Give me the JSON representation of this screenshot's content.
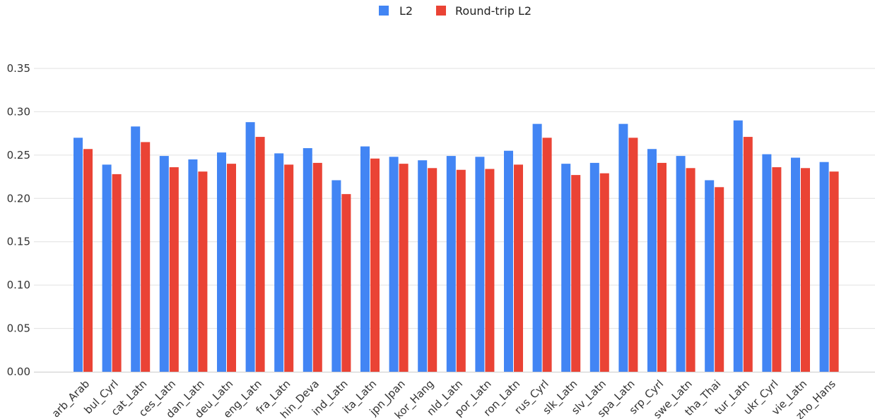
{
  "chart_data": {
    "type": "bar",
    "title": "",
    "xlabel": "",
    "ylabel": "",
    "ylim": [
      0,
      0.37
    ],
    "yticks": [
      "0.00",
      "0.05",
      "0.10",
      "0.15",
      "0.20",
      "0.25",
      "0.30",
      "0.35"
    ],
    "grid": true,
    "legend_position": "top-center",
    "categories": [
      "arb_Arab",
      "bul_Cyrl",
      "cat_Latn",
      "ces_Latn",
      "dan_Latn",
      "deu_Latn",
      "eng_Latn",
      "fra_Latn",
      "hin_Deva",
      "ind_Latn",
      "ita_Latn",
      "jpn_Jpan",
      "kor_Hang",
      "nld_Latn",
      "por_Latn",
      "ron_Latn",
      "rus_Cyrl",
      "slk_Latn",
      "slv_Latn",
      "spa_Latn",
      "srp_Cyrl",
      "swe_Latn",
      "tha_Thai",
      "tur_Latn",
      "ukr_Cyrl",
      "vie_Latn",
      "zho_Hans"
    ],
    "series": [
      {
        "name": "L2",
        "color": "#4285f4",
        "values": [
          0.27,
          0.239,
          0.283,
          0.249,
          0.245,
          0.253,
          0.288,
          0.252,
          0.258,
          0.221,
          0.26,
          0.248,
          0.244,
          0.249,
          0.248,
          0.255,
          0.286,
          0.24,
          0.241,
          0.286,
          0.257,
          0.249,
          0.221,
          0.29,
          0.251,
          0.247,
          0.242
        ]
      },
      {
        "name": "Round-trip L2",
        "color": "#ea4335",
        "values": [
          0.257,
          0.228,
          0.265,
          0.236,
          0.231,
          0.24,
          0.271,
          0.239,
          0.241,
          0.205,
          0.246,
          0.24,
          0.235,
          0.233,
          0.234,
          0.239,
          0.27,
          0.227,
          0.229,
          0.27,
          0.241,
          0.235,
          0.213,
          0.271,
          0.236,
          0.235,
          0.231
        ]
      }
    ]
  }
}
